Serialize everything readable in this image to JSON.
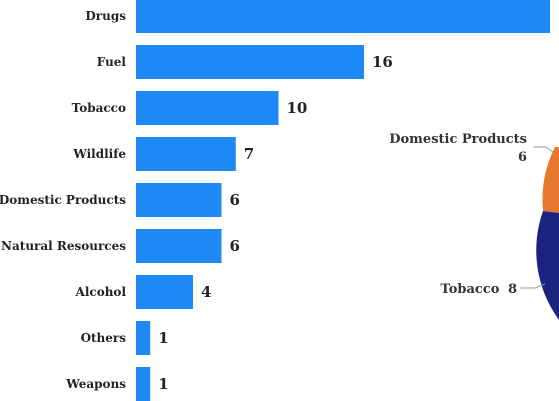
{
  "chart_data": [
    {
      "type": "bar",
      "orientation": "horizontal",
      "title": "",
      "xlabel": "",
      "ylabel": "",
      "categories": [
        "Drugs",
        "Fuel",
        "Tobacco",
        "Wildlife",
        "Domestic Products",
        "Natural Resources",
        "Alcohol",
        "Others",
        "Weapons"
      ],
      "values": [
        null,
        16,
        10,
        7,
        6,
        6,
        4,
        1,
        1
      ],
      "value_labels": [
        "",
        "16",
        "10",
        "7",
        "6",
        "6",
        "4",
        "1",
        "1"
      ],
      "xlim": [
        0,
        16
      ],
      "grid": false,
      "color": "#1e88f5"
    },
    {
      "type": "pie",
      "title": "",
      "visible_labels": [
        {
          "category": "Domestic Products",
          "value_text": "6"
        },
        {
          "category": "Tobacco",
          "value_text": "8"
        }
      ],
      "slice_colors": [
        "#e8772e",
        "#1a237e"
      ]
    }
  ]
}
